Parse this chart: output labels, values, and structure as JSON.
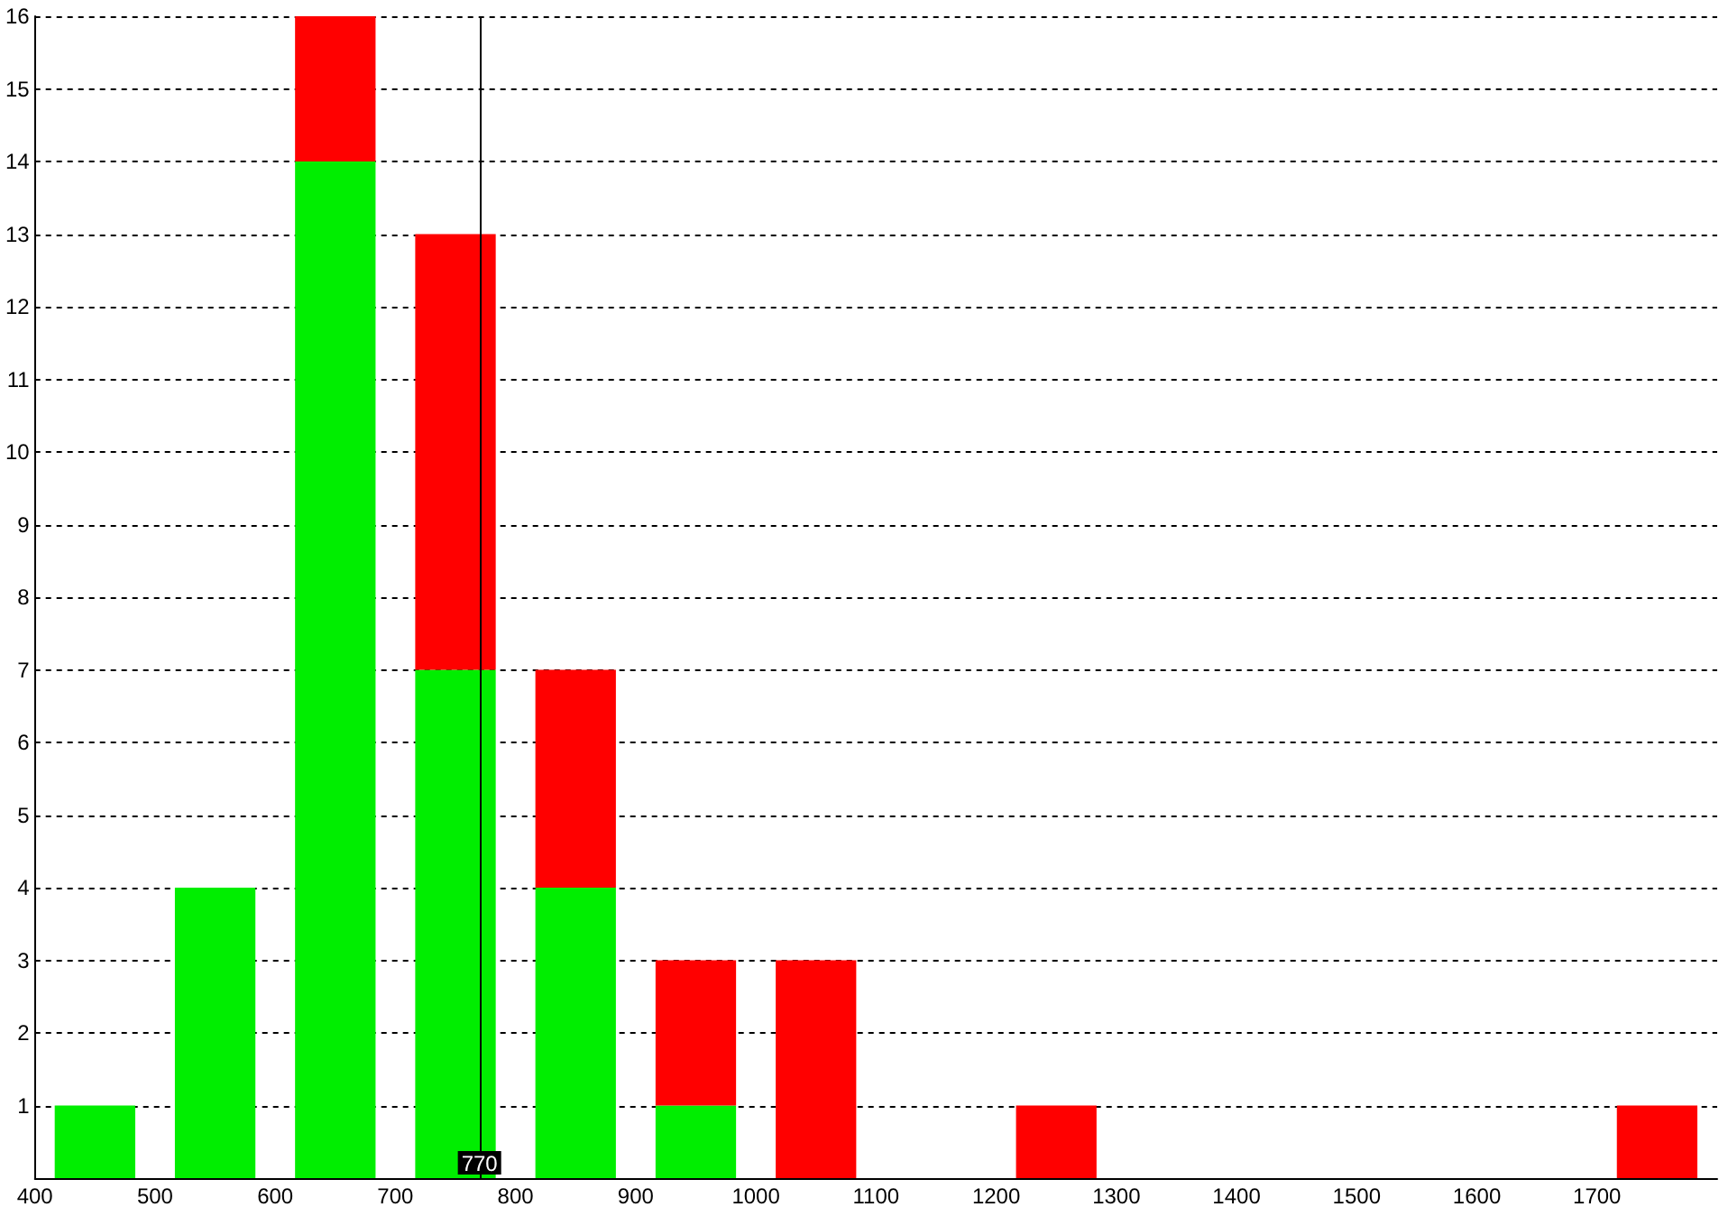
{
  "chart_data": {
    "type": "bar",
    "stacked": true,
    "x": [
      450,
      550,
      650,
      750,
      850,
      950,
      1050,
      1250,
      1750
    ],
    "series": [
      {
        "color": "#00ee00",
        "values": [
          1,
          4,
          14,
          7,
          4,
          1,
          null,
          null,
          null
        ]
      },
      {
        "color": "#ff0000",
        "values": [
          null,
          null,
          2,
          6,
          3,
          2,
          3,
          1,
          1
        ]
      }
    ],
    "xlim": [
      400,
      1800
    ],
    "xticks": [
      400,
      500,
      600,
      700,
      800,
      900,
      1000,
      1100,
      1200,
      1300,
      1400,
      1500,
      1600,
      1700
    ],
    "ylim": [
      0,
      16
    ],
    "yticks": [
      1,
      2,
      3,
      4,
      5,
      6,
      7,
      8,
      9,
      10,
      11,
      12,
      13,
      14,
      15,
      16
    ],
    "grid": "y",
    "ref_lines": [
      {
        "axis": "x",
        "value": 770,
        "label": "770",
        "color": "#000000"
      }
    ]
  }
}
